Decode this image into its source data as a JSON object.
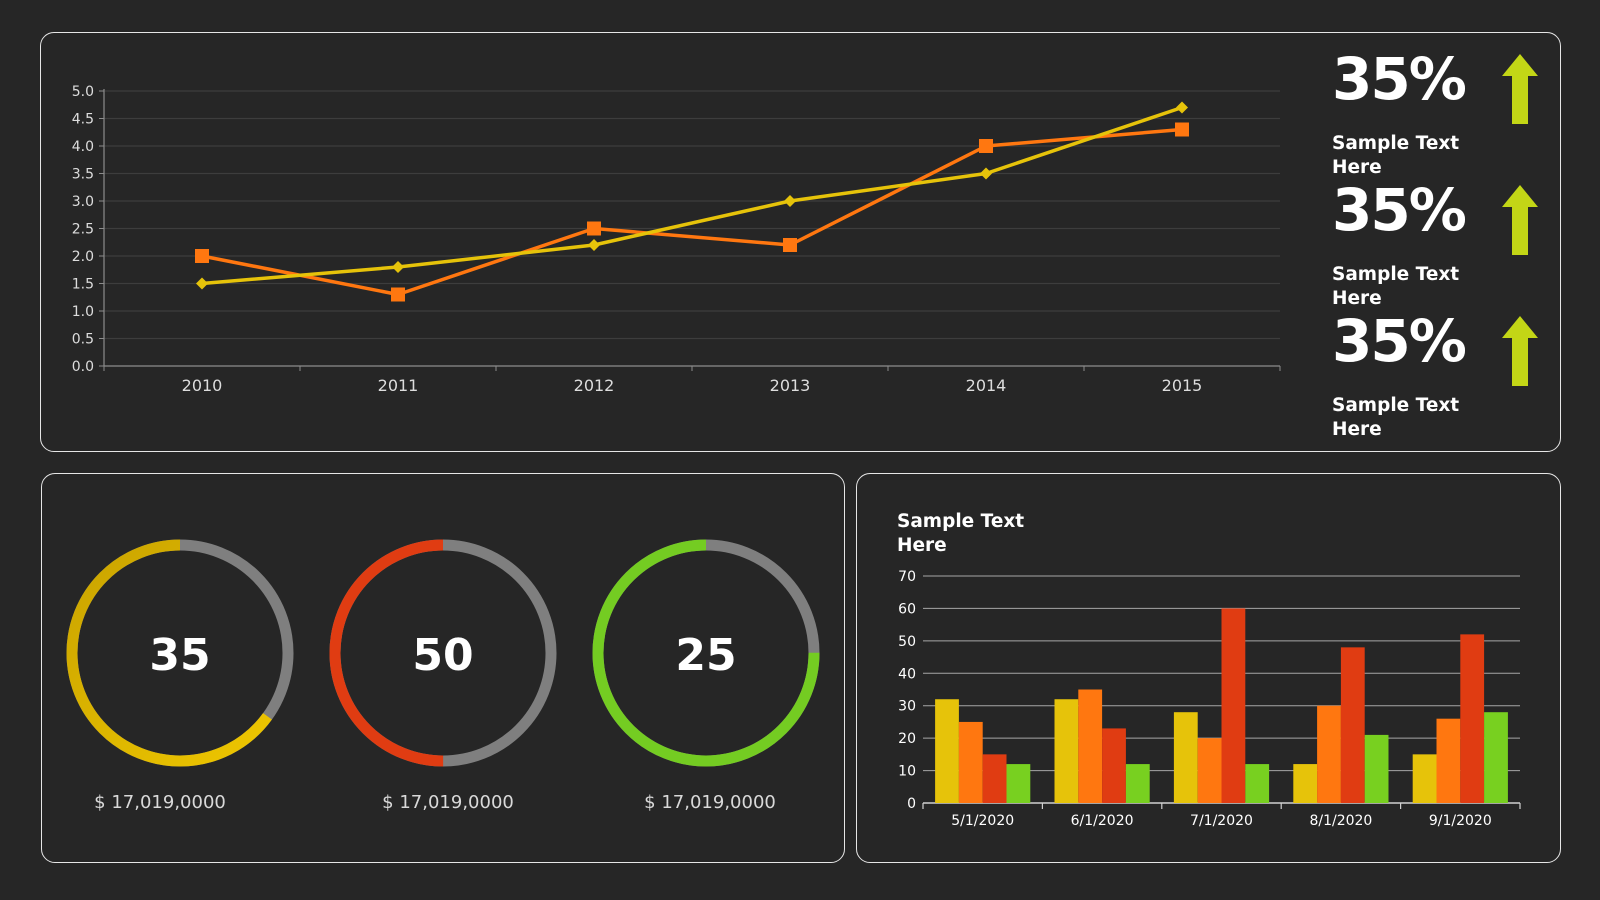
{
  "stats": [
    {
      "value": "35%",
      "label": "Sample Text Here"
    },
    {
      "value": "35%",
      "label": "Sample Text Here"
    },
    {
      "value": "35%",
      "label": "Sample Text Here"
    }
  ],
  "donuts": [
    {
      "value": 35,
      "display": "35",
      "caption": "$ 17,019,0000",
      "color": "#f0c800",
      "color_end": "#c9a300",
      "track": "#7f7f7f"
    },
    {
      "value": 50,
      "display": "50",
      "caption": "$ 17,019,0000",
      "color": "#e03c12",
      "color_end": "#e03c12",
      "track": "#7f7f7f"
    },
    {
      "value": 25,
      "display": "25",
      "caption": "$ 17,019,0000",
      "color": "#74cc22",
      "color_end": "#74cc22",
      "track": "#7f7f7f"
    }
  ],
  "bar_panel": {
    "title": "Sample Text Here"
  },
  "colors": {
    "background": "#262626",
    "arrow": "#c3d616",
    "yellow": "#e6c30a",
    "orange": "#ff7710",
    "red": "#e03c12",
    "green": "#78d020"
  },
  "chart_data": [
    {
      "type": "line",
      "x": [
        "2010",
        "2011",
        "2012",
        "2013",
        "2014",
        "2015"
      ],
      "series": [
        {
          "values": [
            2.0,
            1.3,
            2.5,
            2.2,
            4.0,
            4.3
          ],
          "color": "#ff7710",
          "marker": "square"
        },
        {
          "values": [
            1.5,
            1.8,
            2.2,
            3.0,
            3.5,
            4.7
          ],
          "color": "#e6c30a",
          "marker": "diamond"
        }
      ],
      "ylim": [
        0,
        5
      ],
      "yticks": [
        "0.0",
        "0.5",
        "1.0",
        "1.5",
        "2.0",
        "2.5",
        "3.0",
        "3.5",
        "4.0",
        "4.5",
        "5.0"
      ],
      "grid": true
    },
    {
      "type": "bar",
      "categories": [
        "5/1/2020",
        "6/1/2020",
        "7/1/2020",
        "8/1/2020",
        "9/1/2020"
      ],
      "series": [
        {
          "values": [
            32,
            32,
            28,
            12,
            15
          ],
          "color": "#e6c30a"
        },
        {
          "values": [
            25,
            35,
            20,
            30,
            26
          ],
          "color": "#ff7710"
        },
        {
          "values": [
            15,
            23,
            60,
            48,
            52
          ],
          "color": "#e03c12"
        },
        {
          "values": [
            12,
            12,
            12,
            21,
            28
          ],
          "color": "#78d020"
        }
      ],
      "ylim": [
        0,
        70
      ],
      "yticks": [
        "0",
        "10",
        "20",
        "30",
        "40",
        "50",
        "60",
        "70"
      ],
      "grid": true
    }
  ]
}
